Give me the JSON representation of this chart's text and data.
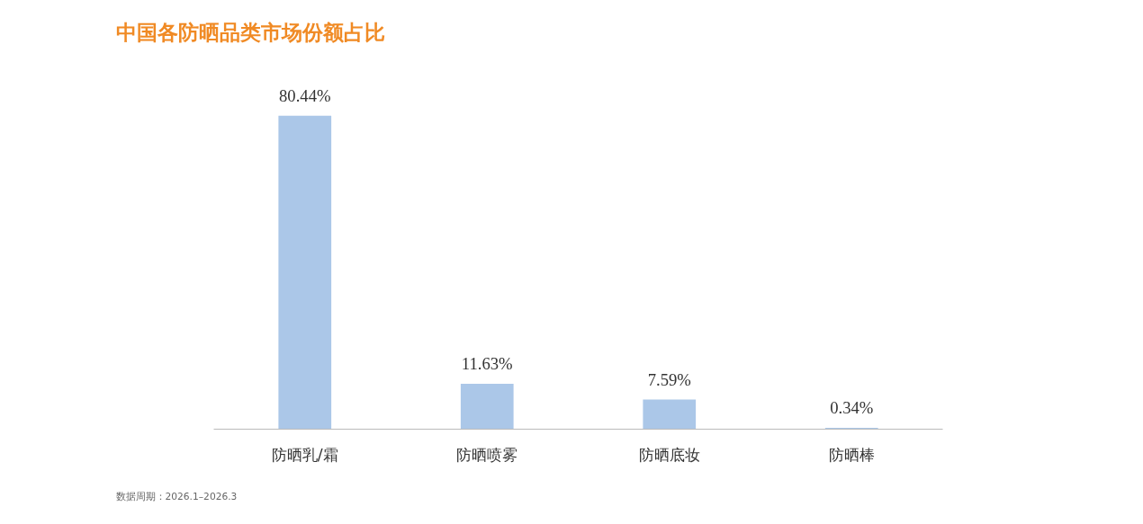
{
  "chart_data": {
    "type": "bar",
    "title": "中国各防晒品类市场份额占比",
    "categories": [
      "防晒乳/霜",
      "防晒喷雾",
      "防晒底妆",
      "防晒棒"
    ],
    "values": [
      80.44,
      11.63,
      7.59,
      0.34
    ],
    "value_labels": [
      "80.44%",
      "11.63%",
      "7.59%",
      "0.34%"
    ],
    "color": "#abc7e8",
    "grid": false,
    "annotations": [
      "数据周期：2026.1–2026.3"
    ]
  }
}
